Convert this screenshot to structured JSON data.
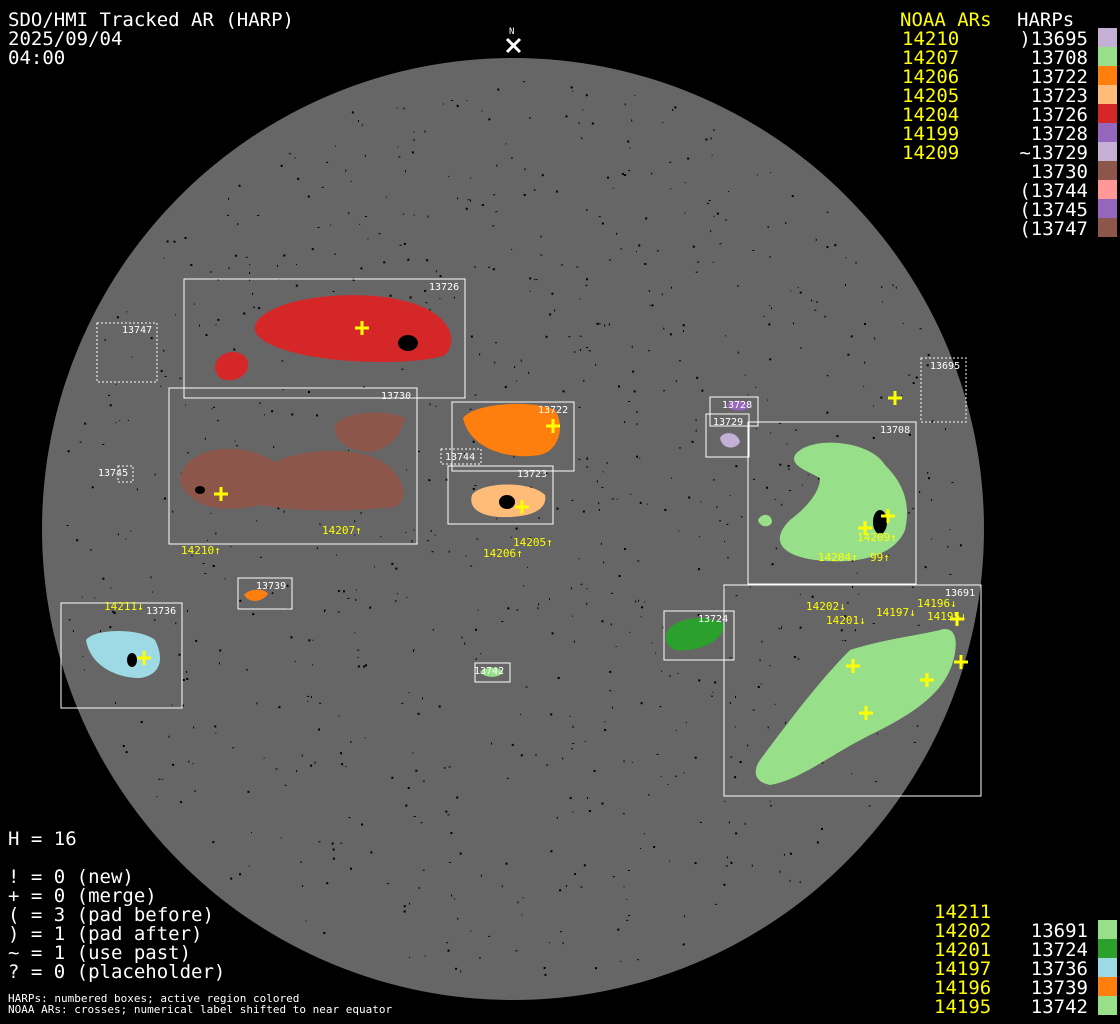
{
  "header": {
    "title": "SDO/HMI Tracked AR (HARP)",
    "date": "2025/09/04",
    "time": "04:00",
    "north_marker": "N"
  },
  "legend_top": {
    "noaa_header": "NOAA ARs",
    "harp_header": "HARPs",
    "noaa": [
      "14210",
      "14207",
      "14206",
      "14205",
      "14204",
      "14199",
      "14209"
    ],
    "harps": [
      {
        "label": ")13695",
        "color": "#c5b0d5"
      },
      {
        "label": "13708",
        "color": "#98df8a"
      },
      {
        "label": "13722",
        "color": "#ff7f0e"
      },
      {
        "label": "13723",
        "color": "#ffbb78"
      },
      {
        "label": "13726",
        "color": "#d62728"
      },
      {
        "label": "13728",
        "color": "#9467bd"
      },
      {
        "label": "~13729",
        "color": "#c5b0d5"
      },
      {
        "label": "13730",
        "color": "#8c564b"
      },
      {
        "label": "(13744",
        "color": "#ff9896"
      },
      {
        "label": "(13745",
        "color": "#9467bd"
      },
      {
        "label": "(13747",
        "color": "#8c564b"
      }
    ]
  },
  "legend_bottom": {
    "noaa": [
      "14211",
      "14202",
      "14201",
      "14197",
      "14196",
      "14195"
    ],
    "harps": [
      {
        "label": "13691",
        "color": "#98df8a"
      },
      {
        "label": "13724",
        "color": "#2ca02c"
      },
      {
        "label": "13736",
        "color": "#9edae5"
      },
      {
        "label": "13739",
        "color": "#ff7f0e"
      },
      {
        "label": "13742",
        "color": "#98df8a"
      }
    ]
  },
  "stats": {
    "h": "H = 16",
    "lines": [
      "! = 0 (new)",
      "+ = 0 (merge)",
      "( = 3 (pad before)",
      ") = 1 (pad after)",
      "~ = 1 (use past)",
      "? = 0 (placeholder)"
    ]
  },
  "footnotes": [
    "HARPs: numbered boxes; active region colored",
    "NOAA ARs: crosses; numerical label shifted to near equator"
  ],
  "map": {
    "disk_color": "#666666",
    "box_labels": [
      "13726",
      "13747",
      "13730",
      "13722",
      "13744",
      "13723",
      "13745",
      "13739",
      "13736",
      "13742",
      "13728",
      "13729",
      "13695",
      "13708",
      "13724",
      "13691"
    ],
    "noaa_labels": [
      "14210↑",
      "14207↑",
      "14206↑",
      "14205↑",
      "14209↑",
      "14204↑",
      "99↑",
      "14196↓",
      "14195↓",
      "14197↓",
      "14202↓",
      "14201↓",
      "14211↓"
    ]
  }
}
